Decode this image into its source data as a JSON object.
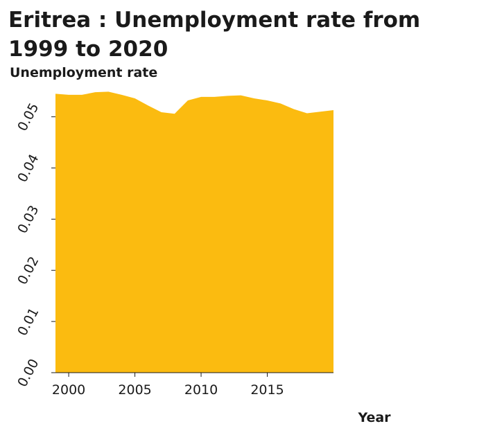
{
  "chart_data": {
    "type": "area",
    "title": "Eritrea : Unemployment rate from 1999 to 2020",
    "xlabel": "Year",
    "ylabel": "Unemployment rate",
    "x": [
      1999,
      2000,
      2001,
      2002,
      2003,
      2004,
      2005,
      2006,
      2007,
      2008,
      2009,
      2010,
      2011,
      2012,
      2013,
      2014,
      2015,
      2016,
      2017,
      2018,
      2019,
      2020
    ],
    "series": [
      {
        "values": [
          0.0545,
          0.0543,
          0.0543,
          0.0548,
          0.0549,
          0.0543,
          0.0536,
          0.0522,
          0.0509,
          0.0506,
          0.0532,
          0.0539,
          0.0539,
          0.0541,
          0.0542,
          0.0536,
          0.0532,
          0.0526,
          0.0515,
          0.0507,
          0.051,
          0.0513
        ]
      }
    ],
    "xlim": [
      1999,
      2020
    ],
    "ylim": [
      0,
      0.055
    ],
    "xticks": [
      "2000",
      "2005",
      "2010",
      "2015"
    ],
    "yticks": [
      "0.00",
      "0.01",
      "0.02",
      "0.03",
      "0.04",
      "0.05"
    ],
    "grid": false,
    "fill_color": "#fbbb10",
    "axis_color": "#1a1a1a"
  }
}
